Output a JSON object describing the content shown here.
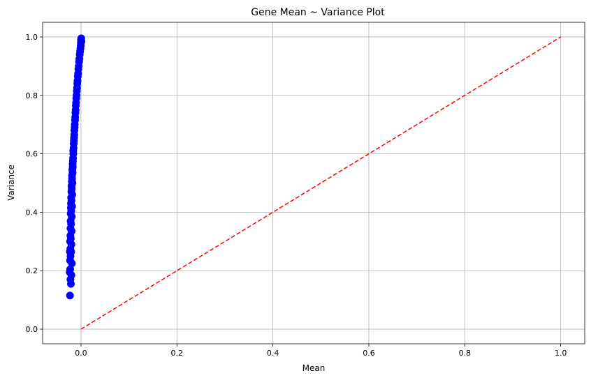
{
  "chart_data": {
    "type": "scatter",
    "title": "Gene Mean ~ Variance Plot",
    "xlabel": "Mean",
    "ylabel": "Variance",
    "xlim": [
      -0.08,
      1.05
    ],
    "ylim": [
      -0.05,
      1.05
    ],
    "xticks": [
      0.0,
      0.2,
      0.4,
      0.6,
      0.8,
      1.0
    ],
    "xtick_labels": [
      "0.0",
      "0.2",
      "0.4",
      "0.6",
      "0.8",
      "1.0"
    ],
    "yticks": [
      0.0,
      0.2,
      0.4,
      0.6,
      0.8,
      1.0
    ],
    "ytick_labels": [
      "0.0",
      "0.2",
      "0.4",
      "0.6",
      "0.8",
      "1.0"
    ],
    "grid": true,
    "legend": "none",
    "series": [
      {
        "kind": "scatter",
        "color": "#0000ff",
        "x": [
          -0.023,
          -0.021,
          -0.022,
          -0.02,
          -0.0235,
          -0.0225,
          -0.019,
          -0.0228,
          -0.0218,
          -0.0232,
          -0.0205,
          -0.0222,
          -0.0199,
          -0.0226,
          -0.0212,
          -0.0221,
          -0.0195,
          -0.0219,
          -0.0207,
          -0.0216,
          -0.0192,
          -0.0214,
          -0.0204,
          -0.0211,
          -0.0185,
          -0.0209,
          -0.0198,
          -0.0206,
          -0.0182,
          -0.0201,
          -0.0193,
          -0.0196,
          -0.0178,
          -0.019,
          -0.0186,
          -0.0187,
          -0.0176,
          -0.0181,
          -0.0172,
          -0.0174,
          -0.0169,
          -0.0166,
          -0.016,
          -0.0161,
          -0.0155,
          -0.0152,
          -0.0148,
          -0.0145,
          -0.014,
          -0.0138,
          -0.0132,
          -0.013,
          -0.0124,
          -0.0121,
          -0.0116,
          -0.0112,
          -0.0107,
          -0.0103,
          -0.0098,
          -0.0093,
          -0.0088,
          -0.0083,
          -0.0078,
          -0.0072,
          -0.0066,
          -0.006,
          -0.0054,
          -0.0047,
          -0.004,
          -0.0033,
          -0.0026,
          -0.0019,
          -0.0012,
          -0.0006,
          -0.0002,
          0.0,
          0.0005,
          0.001
        ],
        "y": [
          0.115,
          0.155,
          0.17,
          0.185,
          0.195,
          0.205,
          0.225,
          0.235,
          0.25,
          0.265,
          0.265,
          0.275,
          0.29,
          0.3,
          0.31,
          0.32,
          0.335,
          0.345,
          0.36,
          0.37,
          0.385,
          0.395,
          0.405,
          0.415,
          0.42,
          0.43,
          0.44,
          0.45,
          0.46,
          0.47,
          0.48,
          0.49,
          0.5,
          0.505,
          0.515,
          0.525,
          0.535,
          0.545,
          0.555,
          0.565,
          0.575,
          0.585,
          0.6,
          0.61,
          0.62,
          0.635,
          0.645,
          0.655,
          0.665,
          0.68,
          0.69,
          0.7,
          0.715,
          0.725,
          0.74,
          0.75,
          0.765,
          0.775,
          0.79,
          0.8,
          0.815,
          0.825,
          0.84,
          0.85,
          0.865,
          0.875,
          0.89,
          0.9,
          0.915,
          0.925,
          0.94,
          0.95,
          0.96,
          0.97,
          0.98,
          0.99,
          0.995,
          0.985
        ]
      },
      {
        "kind": "line",
        "style": "dashed",
        "color": "#ff0000",
        "x": [
          0.0,
          1.0
        ],
        "y": [
          0.0,
          1.0
        ]
      }
    ]
  }
}
